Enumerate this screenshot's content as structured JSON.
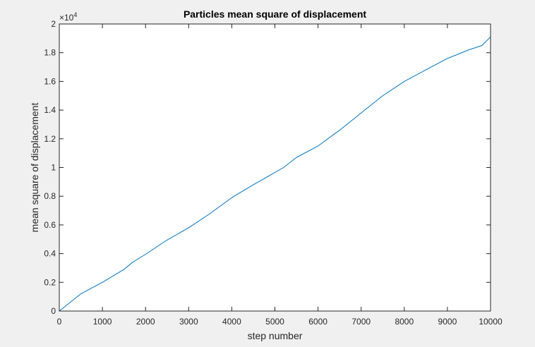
{
  "chart_data": {
    "type": "line",
    "title": "Particles mean square of displacement",
    "xlabel": "step number",
    "ylabel": "mean square of displacement",
    "xlim": [
      0,
      10000
    ],
    "ylim": [
      0,
      20000
    ],
    "x_ticks": [
      0,
      1000,
      2000,
      3000,
      4000,
      5000,
      6000,
      7000,
      8000,
      9000,
      10000
    ],
    "x_tick_labels": [
      "0",
      "1000",
      "2000",
      "3000",
      "4000",
      "5000",
      "6000",
      "7000",
      "8000",
      "9000",
      "10000"
    ],
    "y_ticks": [
      0,
      2000,
      4000,
      6000,
      8000,
      10000,
      12000,
      14000,
      16000,
      18000,
      20000
    ],
    "y_tick_labels": [
      "0",
      "0.2",
      "0.4",
      "0.6",
      "0.8",
      "1",
      "1.2",
      "1.4",
      "1.6",
      "1.8",
      "2"
    ],
    "y_exponent_label": "×10",
    "y_exponent_power": "4",
    "grid": false,
    "line_color": "#0072bd",
    "series": [
      {
        "x": [
          0,
          500,
          1000,
          1500,
          1700,
          2000,
          2500,
          3000,
          3500,
          4000,
          4500,
          5000,
          5200,
          5500,
          6000,
          6500,
          7000,
          7500,
          8000,
          8500,
          9000,
          9500,
          9800,
          10000
        ],
        "values": [
          0,
          1200,
          2000,
          2900,
          3400,
          3950,
          4950,
          5800,
          6800,
          7900,
          8800,
          9650,
          10000,
          10700,
          11500,
          12600,
          13800,
          15000,
          16000,
          16800,
          17600,
          18200,
          18500,
          19100
        ]
      }
    ]
  }
}
